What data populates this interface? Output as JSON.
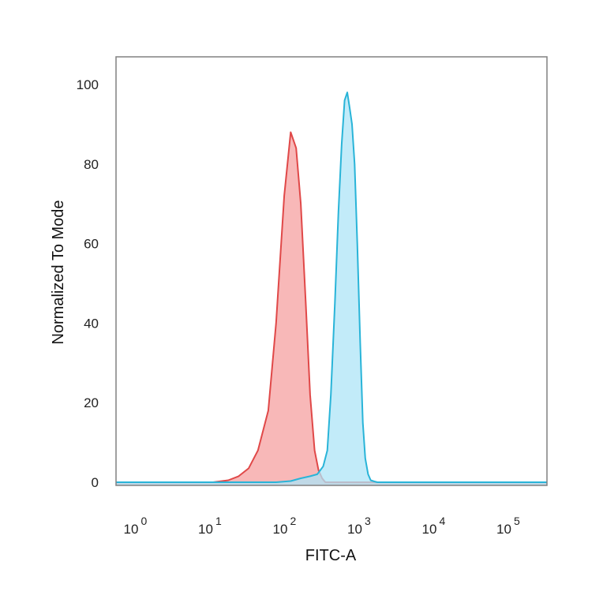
{
  "chart_data": {
    "type": "area",
    "title": "",
    "xlabel": "FITC-A",
    "ylabel": "Normalized To Mode",
    "x_scale": "log",
    "xlim": [
      0.5,
      300000
    ],
    "ylim": [
      0,
      100
    ],
    "x_ticks": [
      {
        "value": 1,
        "base": "10",
        "exp": "0"
      },
      {
        "value": 10,
        "base": "10",
        "exp": "1"
      },
      {
        "value": 100,
        "base": "10",
        "exp": "2"
      },
      {
        "value": 1000,
        "base": "10",
        "exp": "3"
      },
      {
        "value": 10000,
        "base": "10",
        "exp": "4"
      },
      {
        "value": 100000,
        "base": "10",
        "exp": "5"
      }
    ],
    "y_ticks": [
      0,
      20,
      40,
      60,
      80,
      100
    ],
    "grid": false,
    "legend": "none",
    "series": [
      {
        "color": "#e04848",
        "fill": "#f5a0a0",
        "x": [
          0.5,
          10,
          16,
          22,
          30,
          40,
          55,
          70,
          90,
          110,
          130,
          150,
          175,
          200,
          230,
          260,
          290,
          320,
          300000
        ],
        "y": [
          0,
          0,
          0.5,
          1.5,
          3.5,
          8,
          18,
          40,
          72,
          88,
          84,
          70,
          45,
          22,
          8,
          3,
          1,
          0,
          0
        ]
      },
      {
        "color": "#29b4d8",
        "fill": "#aee4f7",
        "x": [
          0.5,
          70,
          110,
          150,
          200,
          250,
          300,
          340,
          380,
          430,
          480,
          530,
          580,
          630,
          680,
          730,
          790,
          860,
          940,
          1020,
          1100,
          1200,
          1300,
          1450,
          1600,
          300000
        ],
        "y": [
          0,
          0,
          0.3,
          1,
          1.5,
          2,
          4,
          8,
          22,
          45,
          68,
          85,
          96,
          98,
          94,
          90,
          80,
          60,
          35,
          15,
          6,
          2,
          0.5,
          0.2,
          0,
          0
        ]
      }
    ]
  }
}
